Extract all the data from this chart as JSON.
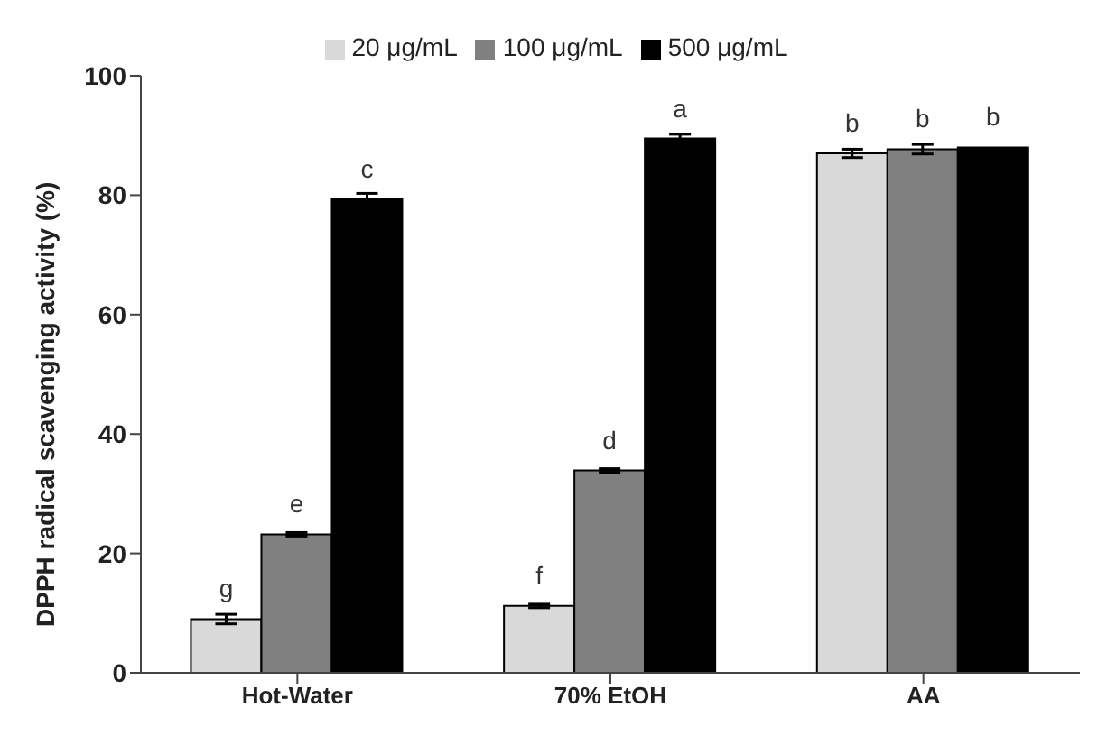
{
  "chart_data": {
    "type": "bar",
    "ylabel": "DPPH radical scavenging activity (%)",
    "categories": [
      "Hot-Water",
      "70% EtOH",
      "AA"
    ],
    "series": [
      {
        "name": "20 μg/mL",
        "color": "#d9d9d9",
        "values": [
          9.0,
          11.2,
          87.0
        ],
        "errors": [
          0.8,
          0.3,
          0.7
        ],
        "value_labels": [
          "g",
          "f",
          "b"
        ]
      },
      {
        "name": "100 μg/mL",
        "color": "#808080",
        "values": [
          23.2,
          33.9,
          87.7
        ],
        "errors": [
          0.3,
          0.3,
          0.8
        ],
        "value_labels": [
          "e",
          "d",
          "b"
        ]
      },
      {
        "name": "500 μg/mL",
        "color": "#000000",
        "values": [
          79.3,
          89.5,
          88.0
        ],
        "errors": [
          1.0,
          0.7,
          null
        ],
        "value_labels": [
          "c",
          "a",
          "b"
        ]
      }
    ],
    "ylim": [
      0,
      100
    ],
    "yticks": [
      0,
      20,
      40,
      60,
      80,
      100
    ],
    "grid": false,
    "legend": "top"
  }
}
